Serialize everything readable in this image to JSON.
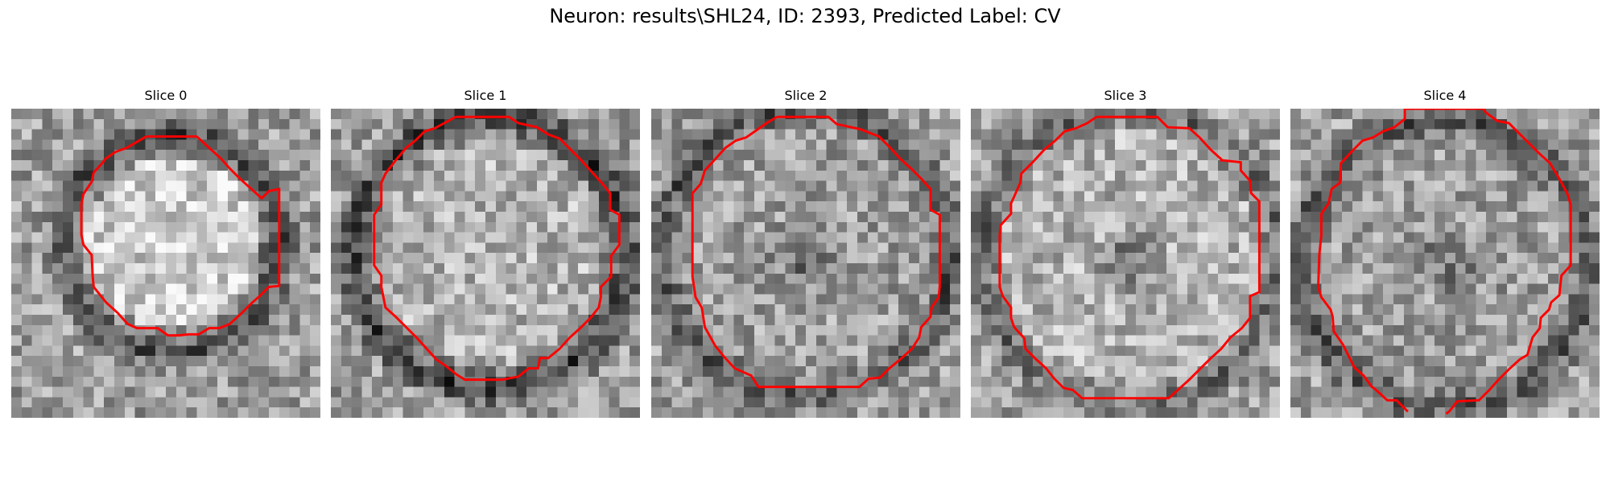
{
  "figure": {
    "title": "Neuron: results\\SHL24, ID: 2393, Predicted Label: CV"
  },
  "panels": [
    {
      "title": "Slice 0"
    },
    {
      "title": "Slice 1"
    },
    {
      "title": "Slice 2"
    },
    {
      "title": "Slice 3"
    },
    {
      "title": "Slice 4"
    }
  ],
  "colors": {
    "background": "#ffffff",
    "contour": "#ff0000",
    "colormap": "grayscale"
  }
}
